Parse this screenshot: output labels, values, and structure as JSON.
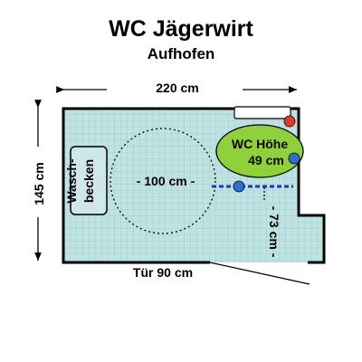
{
  "title": "WC Jägerwirt",
  "subtitle": "Aufhofen",
  "dimensions": {
    "width": "220 cm",
    "height": "145 cm",
    "turning_circle": "- 100 cm -",
    "side_clearance": "- 73 cm -",
    "door": "Tür 90 cm"
  },
  "labels": {
    "sink_line1": "Wasch-",
    "sink_line2": "becken",
    "wc_line1": "WC Höhe",
    "wc_line2": "49 cm"
  },
  "colors": {
    "floor": "#bfe3e3",
    "tile_line": "#9fcaca",
    "wall": "#000000",
    "wc": "#8fd13a",
    "sink": "#cfe6ea",
    "marker_red": "#e8382b",
    "marker_blue": "#2f6fd1",
    "grab_bar": "#1f3aa0"
  }
}
